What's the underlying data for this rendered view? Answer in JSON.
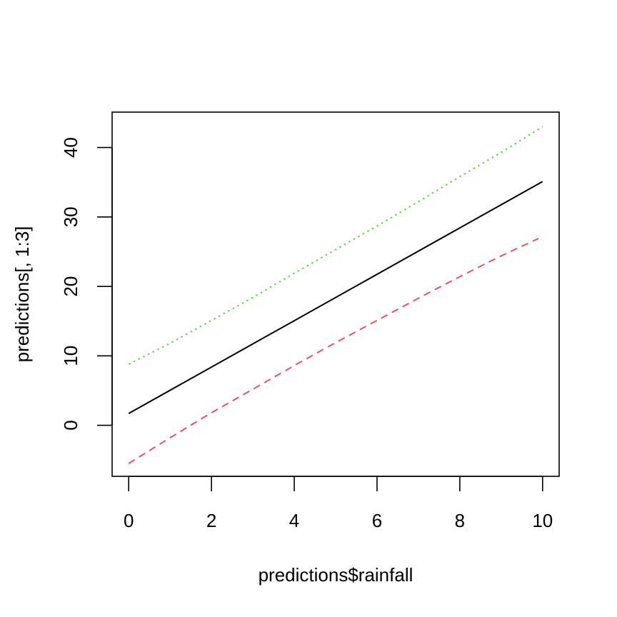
{
  "chart_data": {
    "type": "line",
    "title": "",
    "xlabel": "predictions$rainfall",
    "ylabel": "predictions[, 1:3]",
    "xlim": [
      -0.4,
      10.4
    ],
    "ylim": [
      -7.35,
      45.1
    ],
    "x_ticks": [
      0,
      2,
      4,
      6,
      8,
      10
    ],
    "x_tick_labels": [
      "0",
      "2",
      "4",
      "6",
      "8",
      "10"
    ],
    "y_ticks": [
      0,
      10,
      20,
      30,
      40
    ],
    "y_tick_labels": [
      "0",
      "10",
      "20",
      "30",
      "40"
    ],
    "grid": false,
    "legend": "none",
    "series": [
      {
        "style": "solid",
        "color": "#000000",
        "x": [
          0,
          10
        ],
        "y": [
          1.7,
          35.1
        ]
      },
      {
        "style": "dashed",
        "color": "#DF536B",
        "x": [
          0,
          1,
          2,
          3,
          4,
          5,
          6,
          7,
          8,
          9,
          9.9
        ],
        "y": [
          -5.5,
          -1.8,
          1.8,
          5.2,
          8.6,
          11.9,
          15.1,
          18.3,
          21.4,
          24.4,
          26.9
        ]
      },
      {
        "style": "dotted",
        "color": "#61D04F",
        "x": [
          0,
          1,
          2,
          3,
          4,
          5,
          6,
          7,
          8,
          9,
          10
        ],
        "y": [
          8.8,
          11.8,
          15.1,
          18.4,
          21.9,
          25.3,
          28.7,
          32.2,
          35.8,
          39.3,
          43.0
        ]
      }
    ]
  }
}
